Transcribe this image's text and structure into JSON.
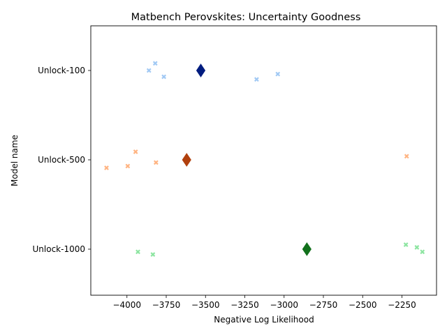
{
  "chart_data": {
    "type": "scatter",
    "title": "Matbench Perovskites: Uncertainty Goodness",
    "xlabel": "Negative Log Likelihood",
    "ylabel": "Model name",
    "xlim": [
      -4230,
      -2030
    ],
    "xticks": [
      -4000,
      -3750,
      -3500,
      -3250,
      -3000,
      -2750,
      -2500,
      -2250
    ],
    "xtick_labels": [
      "−4000",
      "−3750",
      "−3500",
      "−3250",
      "−3000",
      "−2750",
      "−2500",
      "−2250"
    ],
    "categories": [
      "Unlock-100",
      "Unlock-500",
      "Unlock-1000"
    ],
    "grid": false,
    "legend": "none",
    "series": [
      {
        "category": "Unlock-100",
        "color": "#a1c9f4",
        "mean_color": "#001c7f",
        "points": [
          {
            "x": -3860,
            "jitter": 0.0
          },
          {
            "x": -3820,
            "jitter": 0.08
          },
          {
            "x": -3765,
            "jitter": -0.07
          },
          {
            "x": -3175,
            "jitter": -0.1
          },
          {
            "x": -3040,
            "jitter": -0.04
          }
        ],
        "mean": -3530
      },
      {
        "category": "Unlock-500",
        "color": "#ffb482",
        "mean_color": "#b1400d",
        "points": [
          {
            "x": -4130,
            "jitter": -0.09
          },
          {
            "x": -3995,
            "jitter": -0.07
          },
          {
            "x": -3945,
            "jitter": 0.09
          },
          {
            "x": -3815,
            "jitter": -0.03
          },
          {
            "x": -2220,
            "jitter": 0.04
          }
        ],
        "mean": -3620
      },
      {
        "category": "Unlock-1000",
        "color": "#8de5a1",
        "mean_color": "#12711c",
        "points": [
          {
            "x": -3930,
            "jitter": -0.03
          },
          {
            "x": -3835,
            "jitter": -0.06
          },
          {
            "x": -2225,
            "jitter": 0.05
          },
          {
            "x": -2155,
            "jitter": 0.02
          },
          {
            "x": -2120,
            "jitter": -0.03
          }
        ],
        "mean": -2855
      }
    ]
  }
}
